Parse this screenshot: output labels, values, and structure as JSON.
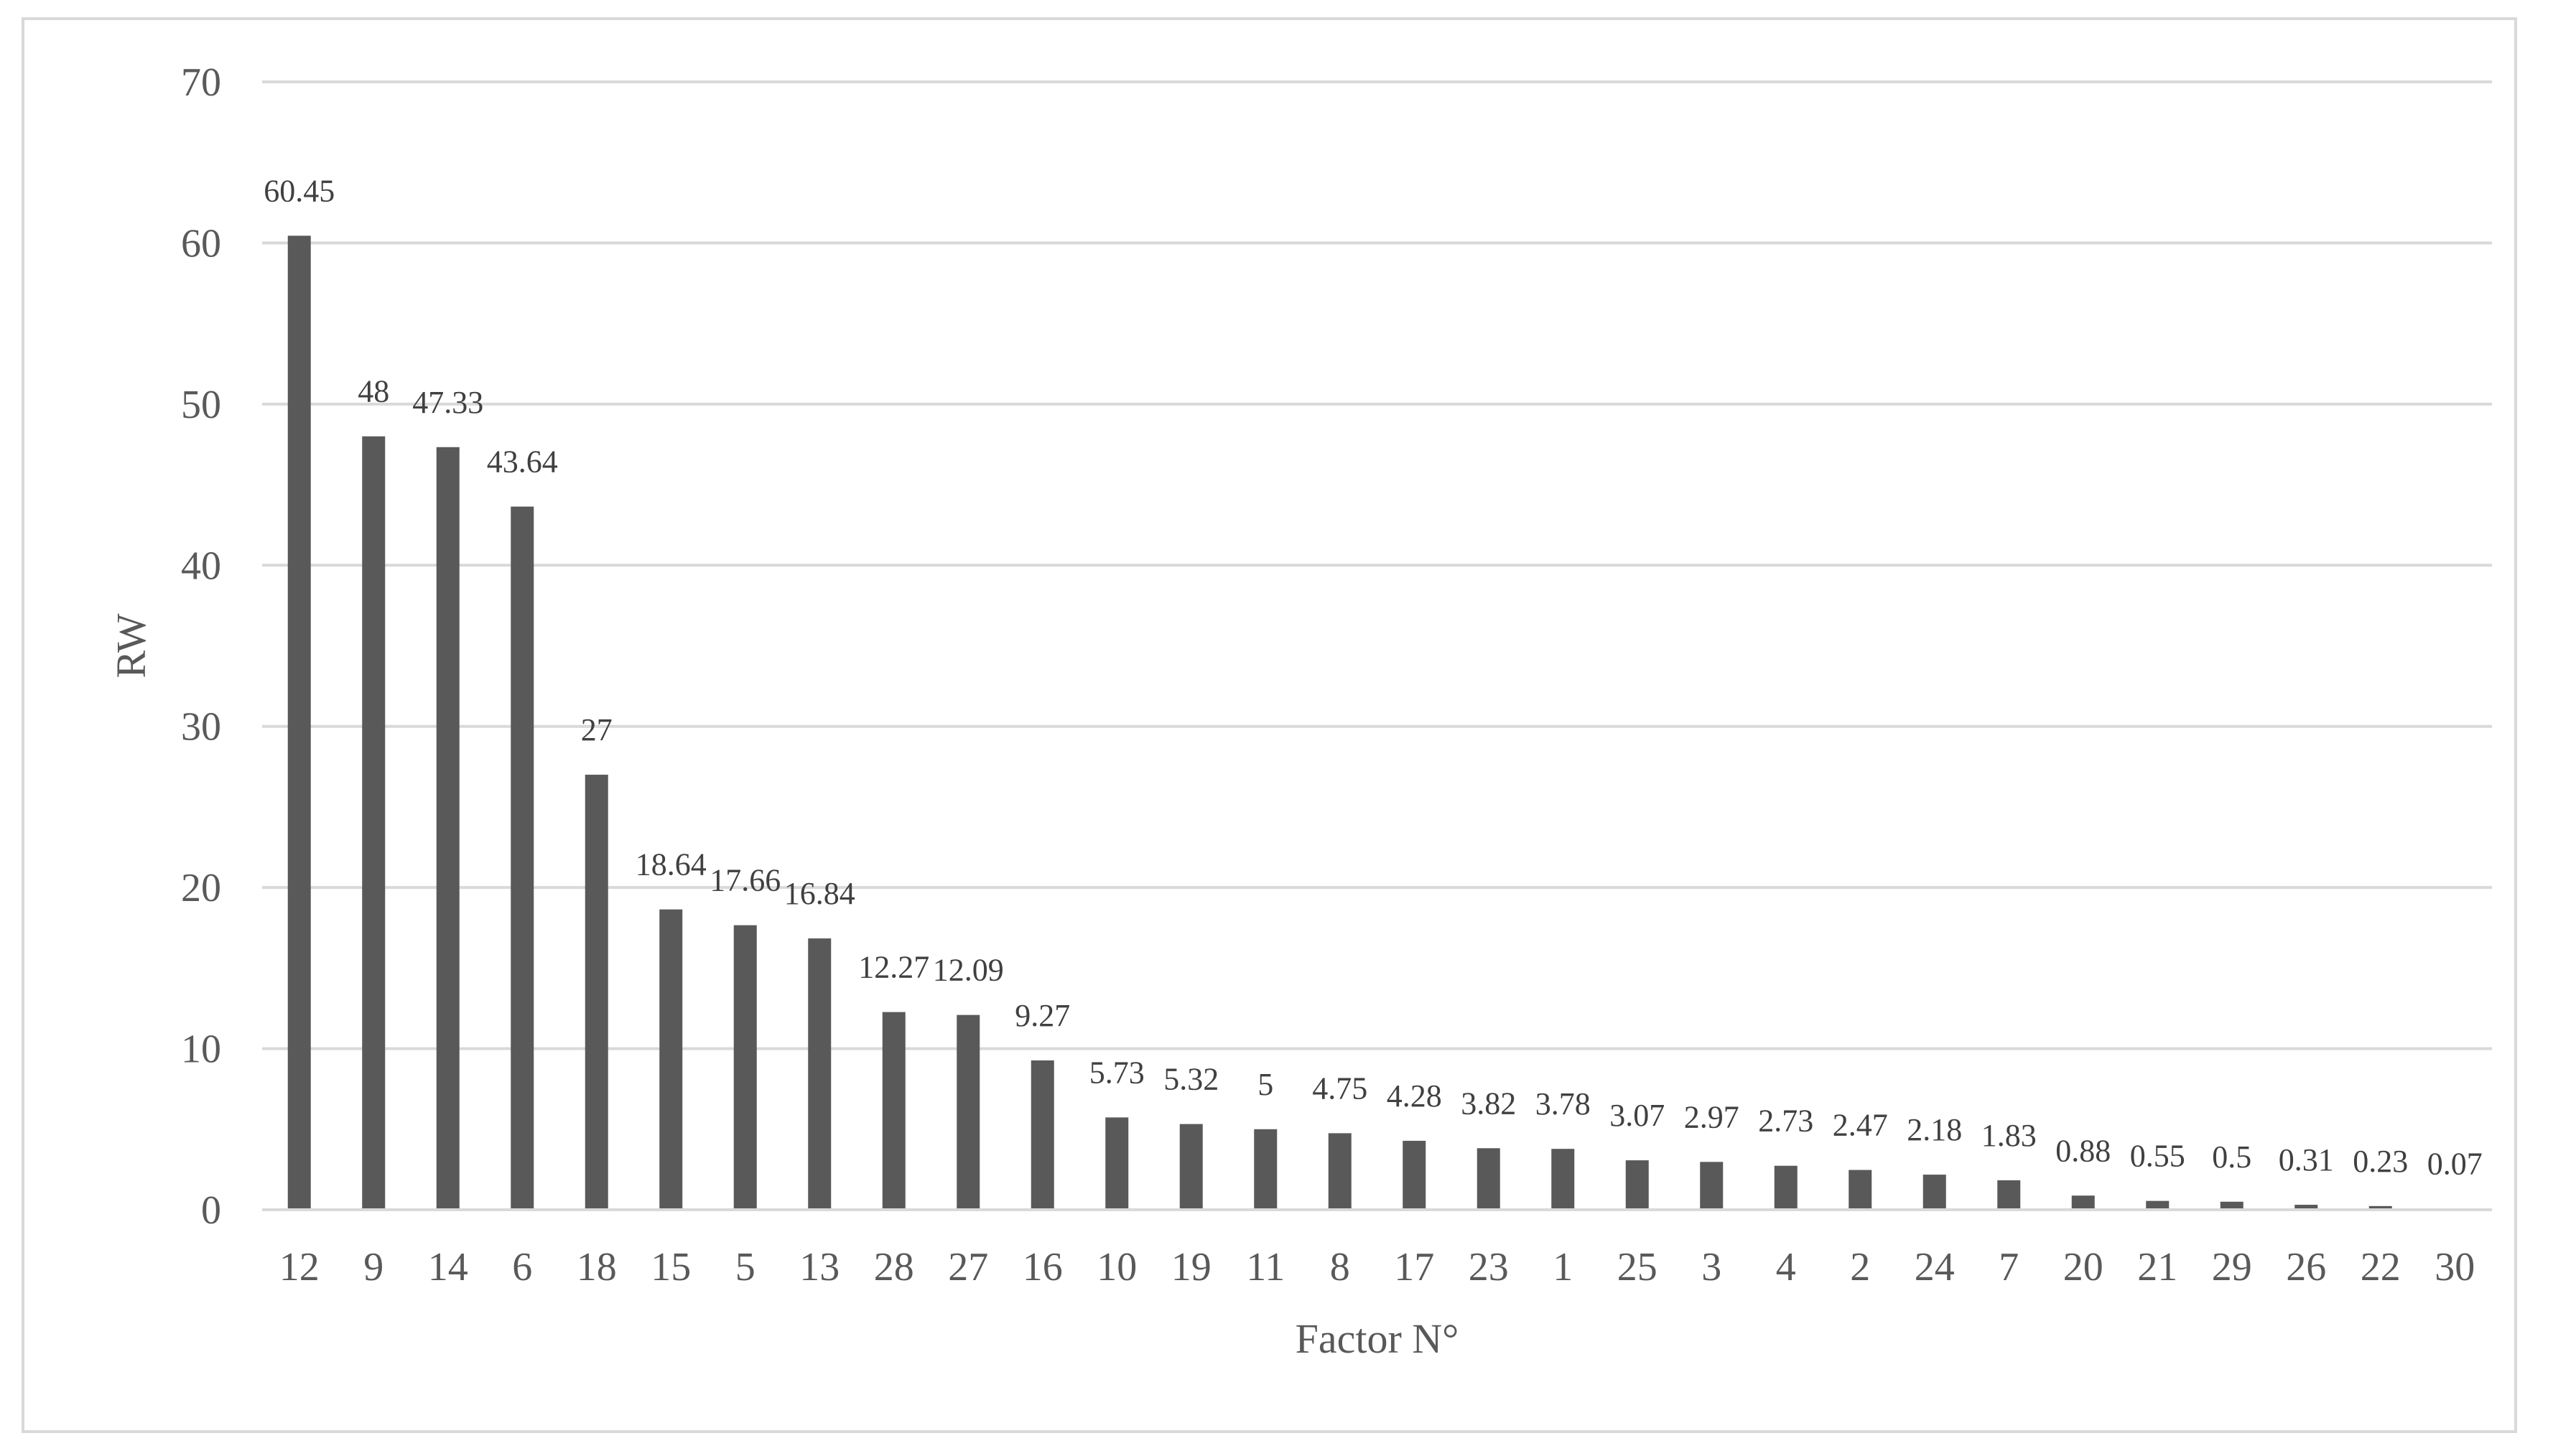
{
  "chart_data": {
    "type": "bar",
    "title": "",
    "xlabel": "Factor N°",
    "ylabel": "RW",
    "ylim": [
      0,
      70
    ],
    "yticks": [
      0,
      10,
      20,
      30,
      40,
      50,
      60,
      70
    ],
    "grid": true,
    "legend": "none",
    "bar_color": "#595959",
    "grid_color": "#d9d9d9",
    "categories": [
      "12",
      "9",
      "14",
      "6",
      "18",
      "15",
      "5",
      "13",
      "28",
      "27",
      "16",
      "10",
      "19",
      "11",
      "8",
      "17",
      "23",
      "1",
      "25",
      "3",
      "4",
      "2",
      "24",
      "7",
      "20",
      "21",
      "29",
      "26",
      "22",
      "30"
    ],
    "values": [
      60.45,
      48,
      47.33,
      43.64,
      27,
      18.64,
      17.66,
      16.84,
      12.27,
      12.09,
      9.27,
      5.73,
      5.32,
      5,
      4.75,
      4.28,
      3.82,
      3.78,
      3.07,
      2.97,
      2.73,
      2.47,
      2.18,
      1.83,
      0.88,
      0.55,
      0.5,
      0.31,
      0.23,
      0.07
    ],
    "data_labels": [
      "60.45",
      "48",
      "47.33",
      "43.64",
      "27",
      "18.64",
      "17.66",
      "16.84",
      "12.27",
      "12.09",
      "9.27",
      "5.73",
      "5.32",
      "5",
      "4.75",
      "4.28",
      "3.82",
      "3.78",
      "3.07",
      "2.97",
      "2.73",
      "2.47",
      "2.18",
      "1.83",
      "0.88",
      "0.55",
      "0.5",
      "0.31",
      "0.23",
      "0.07"
    ]
  }
}
